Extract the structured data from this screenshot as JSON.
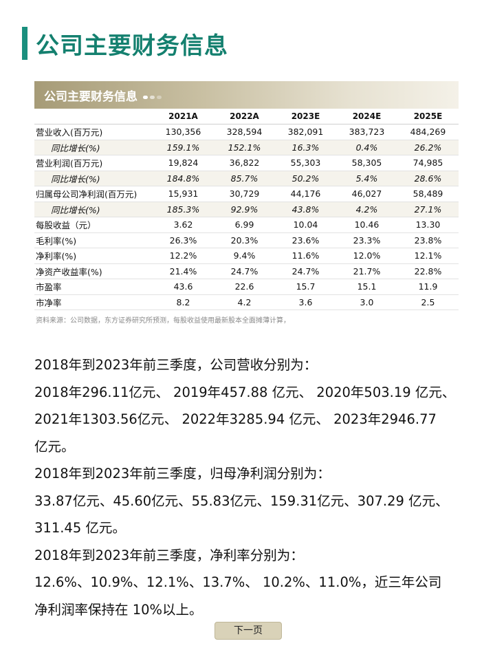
{
  "header": {
    "title": "公司主要财务信息"
  },
  "card": {
    "title": "公司主要财务信息",
    "columns": [
      "",
      "2021A",
      "2022A",
      "2023E",
      "2024E",
      "2025E"
    ],
    "rows": [
      {
        "label": "营业收入(百万元)",
        "values": [
          "130,356",
          "328,594",
          "382,091",
          "383,723",
          "484,269"
        ],
        "growth": false
      },
      {
        "label": "同比增长(%)",
        "values": [
          "159.1%",
          "152.1%",
          "16.3%",
          "0.4%",
          "26.2%"
        ],
        "growth": true
      },
      {
        "label": "营业利润(百万元)",
        "values": [
          "19,824",
          "36,822",
          "55,303",
          "58,305",
          "74,985"
        ],
        "growth": false
      },
      {
        "label": "同比增长(%)",
        "values": [
          "184.8%",
          "85.7%",
          "50.2%",
          "5.4%",
          "28.6%"
        ],
        "growth": true
      },
      {
        "label": "归属母公司净利润(百万元)",
        "values": [
          "15,931",
          "30,729",
          "44,176",
          "46,027",
          "58,489"
        ],
        "growth": false
      },
      {
        "label": "同比增长(%)",
        "values": [
          "185.3%",
          "92.9%",
          "43.8%",
          "4.2%",
          "27.1%"
        ],
        "growth": true
      },
      {
        "label": "每股收益（元）",
        "values": [
          "3.62",
          "6.99",
          "10.04",
          "10.46",
          "13.30"
        ],
        "growth": false
      },
      {
        "label": "毛利率(%)",
        "values": [
          "26.3%",
          "20.3%",
          "23.6%",
          "23.3%",
          "23.8%"
        ],
        "growth": false
      },
      {
        "label": "净利率(%)",
        "values": [
          "12.2%",
          "9.4%",
          "11.6%",
          "12.0%",
          "12.1%"
        ],
        "growth": false
      },
      {
        "label": "净资产收益率(%)",
        "values": [
          "21.4%",
          "24.7%",
          "24.7%",
          "21.7%",
          "22.8%"
        ],
        "growth": false
      },
      {
        "label": "市盈率",
        "values": [
          "43.6",
          "22.6",
          "15.7",
          "15.1",
          "11.9"
        ],
        "growth": false
      },
      {
        "label": "市净率",
        "values": [
          "8.2",
          "4.2",
          "3.6",
          "3.0",
          "2.5"
        ],
        "growth": false
      }
    ],
    "source": "资料来源：公司数据，东方证券研究所预测，每股收益使用最新股本全面摊薄计算，"
  },
  "body": {
    "lines": [
      "2018年到2023年前三季度，公司营收分别为：",
      "2018年296.11亿元、 2019年457.88 亿元、 2020年503.19 亿元、",
      "2021年1303.56亿元、 2022年3285.94 亿元、 2023年2946.77",
      "亿元。",
      "2018年到2023年前三季度，归母净利润分别为：",
      "33.87亿元、45.60亿元、55.83亿元、159.31亿元、307.29 亿元、",
      "311.45 亿元。",
      "2018年到2023年前三季度，净利率分别为：",
      "12.6%、10.9%、12.1%、13.7%、 10.2%、11.0%，近三年公司",
      "净利润率保持在  10%以上。"
    ]
  },
  "nav": {
    "next_label": "下一页"
  }
}
